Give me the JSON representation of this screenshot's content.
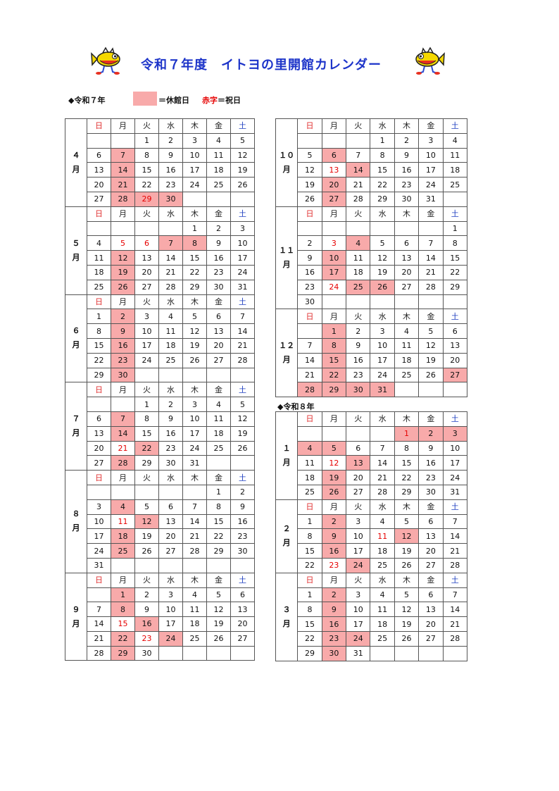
{
  "title": "令和７年度　イトヨの里開館カレンダー",
  "era_r7": "◆令和７年",
  "era_r8": "◆令和８年",
  "legend": {
    "closed_text": "＝休館日",
    "holiday_red": "赤字",
    "holiday_rest": "＝祝日",
    "closed_color": "#f8aaaa",
    "holiday_color": "#e60000"
  },
  "weekday_headers": [
    "日",
    "月",
    "火",
    "水",
    "木",
    "金",
    "土"
  ],
  "months": {
    "apr": {
      "label": "４\n月",
      "weeks": [
        [
          "",
          "",
          "1",
          "2",
          "3",
          "4",
          "5"
        ],
        [
          "6",
          "7",
          "8",
          "9",
          "10",
          "11",
          "12"
        ],
        [
          "13",
          "14",
          "15",
          "16",
          "17",
          "18",
          "19"
        ],
        [
          "20",
          "21",
          "22",
          "23",
          "24",
          "25",
          "26"
        ],
        [
          "27",
          "28",
          "29",
          "30",
          "",
          "",
          ""
        ]
      ],
      "closed": [
        "7",
        "14",
        "21",
        "28",
        "29",
        "30"
      ],
      "holidays": [
        "29"
      ]
    },
    "may": {
      "label": "５\n月",
      "weeks": [
        [
          "",
          "",
          "",
          "",
          "1",
          "2",
          "3"
        ],
        [
          "4",
          "5",
          "6",
          "7",
          "8",
          "9",
          "10"
        ],
        [
          "11",
          "12",
          "13",
          "14",
          "15",
          "16",
          "17"
        ],
        [
          "18",
          "19",
          "20",
          "21",
          "22",
          "23",
          "24"
        ],
        [
          "25",
          "26",
          "27",
          "28",
          "29",
          "30",
          "31"
        ]
      ],
      "closed": [
        "7",
        "8",
        "12",
        "19",
        "26"
      ],
      "holidays": [
        "5",
        "6"
      ]
    },
    "jun": {
      "label": "６\n月",
      "weeks": [
        [
          "1",
          "2",
          "3",
          "4",
          "5",
          "6",
          "7"
        ],
        [
          "8",
          "9",
          "10",
          "11",
          "12",
          "13",
          "14"
        ],
        [
          "15",
          "16",
          "17",
          "18",
          "19",
          "20",
          "21"
        ],
        [
          "22",
          "23",
          "24",
          "25",
          "26",
          "27",
          "28"
        ],
        [
          "29",
          "30",
          "",
          "",
          "",
          "",
          ""
        ]
      ],
      "closed": [
        "2",
        "9",
        "16",
        "23",
        "30"
      ],
      "holidays": []
    },
    "jul": {
      "label": "７\n月",
      "weeks": [
        [
          "",
          "",
          "1",
          "2",
          "3",
          "4",
          "5"
        ],
        [
          "6",
          "7",
          "8",
          "9",
          "10",
          "11",
          "12"
        ],
        [
          "13",
          "14",
          "15",
          "16",
          "17",
          "18",
          "19"
        ],
        [
          "20",
          "21",
          "22",
          "23",
          "24",
          "25",
          "26"
        ],
        [
          "27",
          "28",
          "29",
          "30",
          "31",
          "",
          ""
        ]
      ],
      "closed": [
        "7",
        "14",
        "22",
        "28"
      ],
      "holidays": [
        "21"
      ]
    },
    "aug": {
      "label": "８\n月",
      "weeks": [
        [
          "",
          "",
          "",
          "",
          "",
          "1",
          "2"
        ],
        [
          "3",
          "4",
          "5",
          "6",
          "7",
          "8",
          "9"
        ],
        [
          "10",
          "11",
          "12",
          "13",
          "14",
          "15",
          "16"
        ],
        [
          "17",
          "18",
          "19",
          "20",
          "21",
          "22",
          "23"
        ],
        [
          "24",
          "25",
          "26",
          "27",
          "28",
          "29",
          "30"
        ],
        [
          "31",
          "",
          "",
          "",
          "",
          "",
          ""
        ]
      ],
      "closed": [
        "4",
        "12",
        "18",
        "25"
      ],
      "holidays": [
        "11"
      ]
    },
    "sep": {
      "label": "９\n月",
      "weeks": [
        [
          "",
          "1",
          "2",
          "3",
          "4",
          "5",
          "6"
        ],
        [
          "7",
          "8",
          "9",
          "10",
          "11",
          "12",
          "13"
        ],
        [
          "14",
          "15",
          "16",
          "17",
          "18",
          "19",
          "20"
        ],
        [
          "21",
          "22",
          "23",
          "24",
          "25",
          "26",
          "27"
        ],
        [
          "28",
          "29",
          "30",
          "",
          "",
          "",
          ""
        ]
      ],
      "closed": [
        "1",
        "8",
        "16",
        "22",
        "24",
        "29"
      ],
      "holidays": [
        "15",
        "23"
      ]
    },
    "oct": {
      "label": "１０\n月",
      "weeks": [
        [
          "",
          "",
          "",
          "1",
          "2",
          "3",
          "4"
        ],
        [
          "5",
          "6",
          "7",
          "8",
          "9",
          "10",
          "11"
        ],
        [
          "12",
          "13",
          "14",
          "15",
          "16",
          "17",
          "18"
        ],
        [
          "19",
          "20",
          "21",
          "22",
          "23",
          "24",
          "25"
        ],
        [
          "26",
          "27",
          "28",
          "29",
          "30",
          "31",
          ""
        ]
      ],
      "closed": [
        "6",
        "14",
        "20",
        "27"
      ],
      "holidays": [
        "13"
      ]
    },
    "nov": {
      "label": "１１\n月",
      "weeks": [
        [
          "",
          "",
          "",
          "",
          "",
          "",
          "1"
        ],
        [
          "2",
          "3",
          "4",
          "5",
          "6",
          "7",
          "8"
        ],
        [
          "9",
          "10",
          "11",
          "12",
          "13",
          "14",
          "15"
        ],
        [
          "16",
          "17",
          "18",
          "19",
          "20",
          "21",
          "22"
        ],
        [
          "23",
          "24",
          "25",
          "26",
          "27",
          "28",
          "29"
        ],
        [
          "30",
          "",
          "",
          "",
          "",
          "",
          ""
        ]
      ],
      "closed": [
        "4",
        "10",
        "17",
        "25",
        "26"
      ],
      "holidays": [
        "3",
        "24"
      ]
    },
    "dec": {
      "label": "１２\n月",
      "weeks": [
        [
          "",
          "1",
          "2",
          "3",
          "4",
          "5",
          "6"
        ],
        [
          "7",
          "8",
          "9",
          "10",
          "11",
          "12",
          "13"
        ],
        [
          "14",
          "15",
          "16",
          "17",
          "18",
          "19",
          "20"
        ],
        [
          "21",
          "22",
          "23",
          "24",
          "25",
          "26",
          "27"
        ],
        [
          "28",
          "29",
          "30",
          "31",
          "",
          "",
          ""
        ]
      ],
      "closed": [
        "1",
        "8",
        "15",
        "22",
        "27",
        "28",
        "29",
        "30",
        "31"
      ],
      "holidays": []
    },
    "jan": {
      "label": "１\n月",
      "weeks": [
        [
          "",
          "",
          "",
          "",
          "1",
          "2",
          "3"
        ],
        [
          "4",
          "5",
          "6",
          "7",
          "8",
          "9",
          "10"
        ],
        [
          "11",
          "12",
          "13",
          "14",
          "15",
          "16",
          "17"
        ],
        [
          "18",
          "19",
          "20",
          "21",
          "22",
          "23",
          "24"
        ],
        [
          "25",
          "26",
          "27",
          "28",
          "29",
          "30",
          "31"
        ]
      ],
      "closed": [
        "1",
        "2",
        "3",
        "4",
        "5",
        "13",
        "19",
        "26"
      ],
      "holidays": [
        "1",
        "12"
      ]
    },
    "feb": {
      "label": "２\n月",
      "weeks": [
        [
          "1",
          "2",
          "3",
          "4",
          "5",
          "6",
          "7"
        ],
        [
          "8",
          "9",
          "10",
          "11",
          "12",
          "13",
          "14"
        ],
        [
          "15",
          "16",
          "17",
          "18",
          "19",
          "20",
          "21"
        ],
        [
          "22",
          "23",
          "24",
          "25",
          "26",
          "27",
          "28"
        ]
      ],
      "closed": [
        "2",
        "9",
        "12",
        "16",
        "24"
      ],
      "holidays": [
        "11",
        "23"
      ]
    },
    "mar": {
      "label": "３\n月",
      "weeks": [
        [
          "1",
          "2",
          "3",
          "4",
          "5",
          "6",
          "7"
        ],
        [
          "8",
          "9",
          "10",
          "11",
          "12",
          "13",
          "14"
        ],
        [
          "15",
          "16",
          "17",
          "18",
          "19",
          "20",
          "21"
        ],
        [
          "22",
          "23",
          "24",
          "25",
          "26",
          "27",
          "28"
        ],
        [
          "29",
          "30",
          "31",
          "",
          "",
          "",
          ""
        ]
      ],
      "closed": [
        "2",
        "9",
        "16",
        "23",
        "24",
        "30"
      ],
      "holidays": []
    }
  }
}
